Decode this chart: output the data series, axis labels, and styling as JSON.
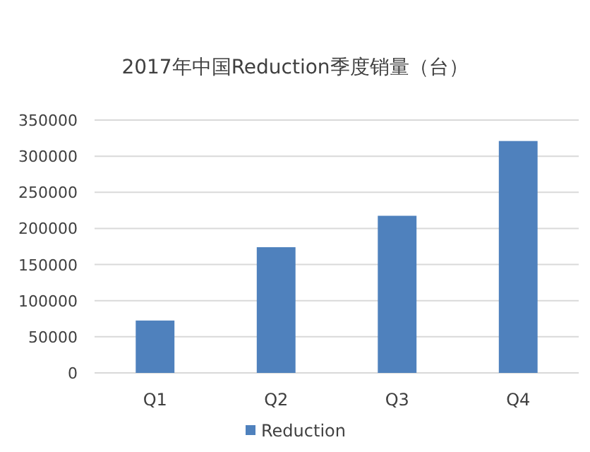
{
  "chart_data": {
    "type": "bar",
    "title": "2017年中国Reduction季度销量（台）",
    "categories": [
      "Q1",
      "Q2",
      "Q3",
      "Q4"
    ],
    "series": [
      {
        "name": "Reduction",
        "color": "#4f81bd",
        "values": [
          72500,
          174000,
          217500,
          321000
        ]
      }
    ],
    "ylim": [
      0,
      350000
    ],
    "yticks": [
      0,
      50000,
      100000,
      150000,
      200000,
      250000,
      300000,
      350000
    ],
    "grid": "y",
    "legend": "bottom"
  }
}
